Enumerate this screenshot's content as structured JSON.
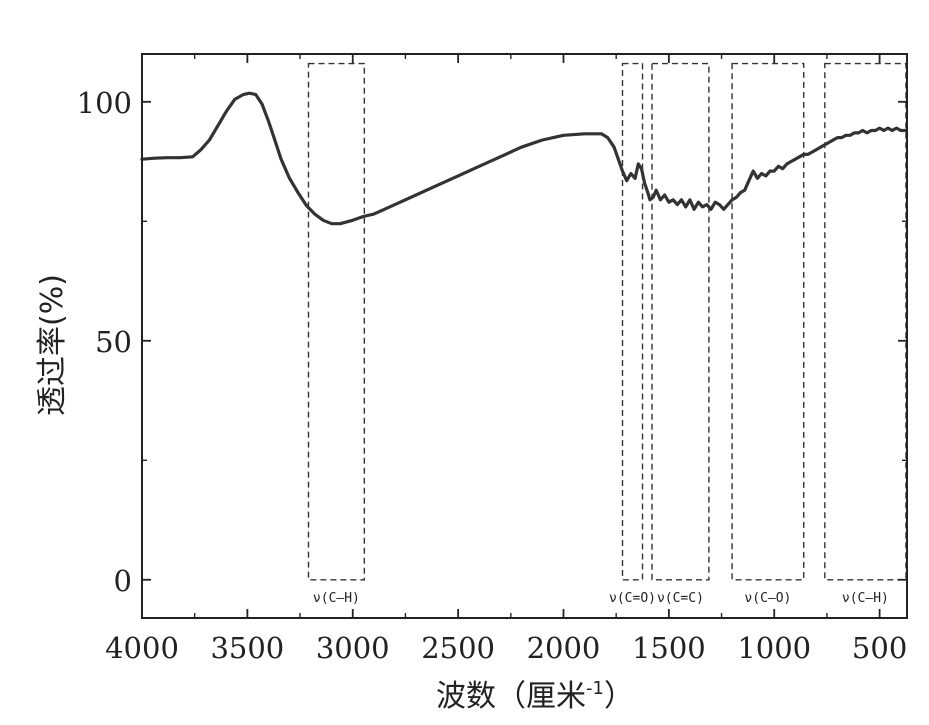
{
  "chart_data": {
    "type": "line",
    "title": "",
    "xlabel": "波数（厘米",
    "xlabel_sup": "-1",
    "xlabel_close": "）",
    "ylabel": "透过率(%)",
    "x_reversed": true,
    "xlim": [
      4000,
      370
    ],
    "ylim": [
      -8,
      110
    ],
    "x_ticks": [
      {
        "value": 4000,
        "label": "4000"
      },
      {
        "value": 3500,
        "label": "3500"
      },
      {
        "value": 3000,
        "label": "3000"
      },
      {
        "value": 2500,
        "label": "2500"
      },
      {
        "value": 2000,
        "label": "2000"
      },
      {
        "value": 1500,
        "label": "1500"
      },
      {
        "value": 1000,
        "label": "1000"
      },
      {
        "value": 500,
        "label": "500"
      }
    ],
    "y_ticks": [
      {
        "value": 100,
        "label": "100"
      },
      {
        "value": 50,
        "label": "50"
      },
      {
        "value": 0,
        "label": "0"
      }
    ],
    "grid": false,
    "legend": "none",
    "series": [
      {
        "color": "#333333",
        "x": [
          4000,
          3940,
          3880,
          3820,
          3760,
          3720,
          3680,
          3640,
          3600,
          3560,
          3520,
          3490,
          3460,
          3430,
          3400,
          3370,
          3340,
          3300,
          3260,
          3220,
          3180,
          3140,
          3100,
          3060,
          3000,
          2950,
          2900,
          2850,
          2800,
          2700,
          2600,
          2500,
          2400,
          2300,
          2200,
          2100,
          2000,
          1900,
          1820,
          1790,
          1760,
          1740,
          1720,
          1700,
          1680,
          1660,
          1645,
          1630,
          1615,
          1600,
          1590,
          1575,
          1560,
          1540,
          1520,
          1500,
          1480,
          1460,
          1440,
          1420,
          1400,
          1380,
          1360,
          1340,
          1320,
          1300,
          1280,
          1260,
          1240,
          1220,
          1200,
          1180,
          1160,
          1140,
          1120,
          1100,
          1080,
          1060,
          1040,
          1020,
          1000,
          980,
          960,
          940,
          920,
          900,
          880,
          860,
          840,
          820,
          800,
          780,
          760,
          740,
          720,
          700,
          680,
          660,
          640,
          620,
          600,
          580,
          560,
          540,
          520,
          500,
          480,
          460,
          440,
          420,
          400,
          380
        ],
        "y": [
          88,
          88.2,
          88.3,
          88.3,
          88.5,
          90,
          92,
          95,
          98,
          100.5,
          101.5,
          101.8,
          101.5,
          99.5,
          96,
          92,
          88,
          84,
          81,
          78.3,
          76.5,
          75.2,
          74.5,
          74.5,
          75.2,
          76,
          76.5,
          77.5,
          78.5,
          80.5,
          82.5,
          84.5,
          86.5,
          88.5,
          90.5,
          92,
          93,
          93.3,
          93.3,
          92.5,
          90.5,
          88,
          85.5,
          83.5,
          85,
          84,
          87,
          86,
          83,
          81,
          79.5,
          80,
          81.5,
          79.5,
          80.5,
          79,
          79.5,
          78.5,
          79.5,
          78,
          79.5,
          77.5,
          79,
          78,
          78.5,
          77.5,
          79,
          78.5,
          77.5,
          78.5,
          79.5,
          80,
          81,
          81.5,
          83.5,
          85.5,
          84,
          85,
          84.5,
          85.5,
          85.5,
          86.5,
          86,
          87,
          87.5,
          88,
          88.5,
          89,
          89,
          89.5,
          90,
          90.5,
          91,
          91.5,
          92,
          92.5,
          92.5,
          93,
          93,
          93.5,
          93.5,
          94,
          93.5,
          94,
          94,
          94.5,
          94,
          94.5,
          94,
          94.5,
          94,
          94
        ]
      }
    ],
    "bands": [
      {
        "label": "ν(C–H)",
        "x_left": 3210,
        "x_right": 2945
      },
      {
        "label": "ν(C=O)",
        "x_left": 1720,
        "x_right": 1625
      },
      {
        "label": "ν(C=C)",
        "x_left": 1580,
        "x_right": 1310
      },
      {
        "label": "ν(C–O)",
        "x_left": 1200,
        "x_right": 860
      },
      {
        "label": "ν(C–H)",
        "x_left": 760,
        "x_right": 375
      }
    ],
    "band_y_range": [
      0,
      108
    ]
  }
}
